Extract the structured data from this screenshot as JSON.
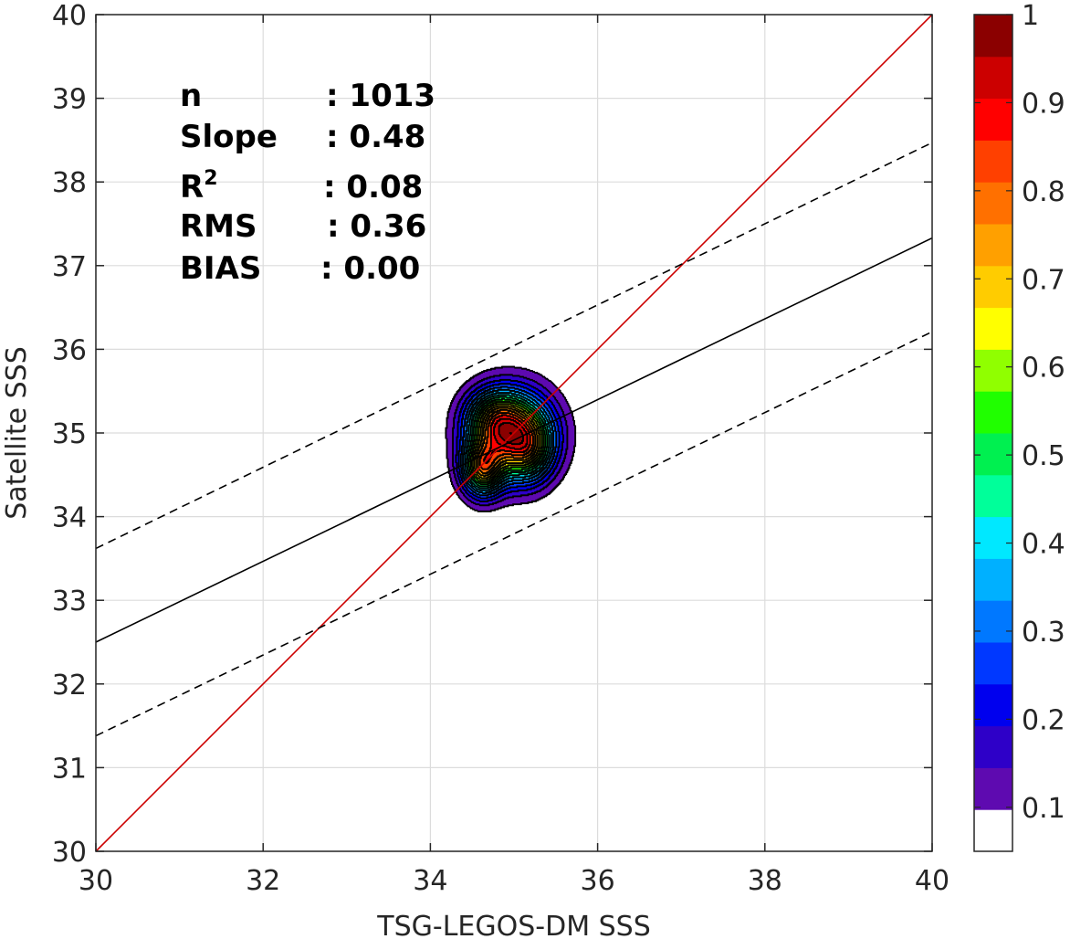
{
  "chart_data": {
    "type": "contour-scatter",
    "xlabel": "TSG-LEGOS-DM SSS",
    "ylabel": "Satellite SSS",
    "xlim": [
      30,
      40
    ],
    "ylim": [
      30,
      40
    ],
    "xticks": [
      "30",
      "32",
      "34",
      "36",
      "38",
      "40"
    ],
    "yticks": [
      "30",
      "31",
      "32",
      "33",
      "34",
      "35",
      "36",
      "37",
      "38",
      "39",
      "40"
    ],
    "grid": true,
    "stats": [
      {
        "label": "n",
        "value": ": 1013"
      },
      {
        "label": "Slope",
        "value": ": 0.48"
      },
      {
        "label": "R",
        "sup": "2",
        "value": ": 0.08"
      },
      {
        "label": "RMS",
        "value": ": 0.36"
      },
      {
        "label": "BIAS",
        "value": ": 0.00"
      }
    ],
    "lines": [
      {
        "name": "one-to-one",
        "color": "#cc0000",
        "style": "solid",
        "x": [
          30,
          40
        ],
        "y": [
          30,
          40
        ]
      },
      {
        "name": "regression",
        "color": "#000000",
        "style": "solid",
        "x": [
          30,
          40
        ],
        "y": [
          32.5,
          37.33
        ]
      },
      {
        "name": "upper-bound",
        "color": "#000000",
        "style": "dashed",
        "x": [
          30,
          40
        ],
        "y": [
          33.62,
          38.47
        ]
      },
      {
        "name": "lower-bound",
        "color": "#000000",
        "style": "dashed",
        "x": [
          30,
          40
        ],
        "y": [
          31.38,
          36.21
        ]
      }
    ],
    "density": {
      "peaks": [
        {
          "x": 34.98,
          "y": 34.98,
          "weight": 1.0,
          "sx": 0.32,
          "sy": 0.34
        },
        {
          "x": 34.62,
          "y": 34.58,
          "weight": 0.72,
          "sx": 0.16,
          "sy": 0.22
        },
        {
          "x": 34.75,
          "y": 35.2,
          "weight": 0.35,
          "sx": 0.22,
          "sy": 0.22
        },
        {
          "x": 35.2,
          "y": 34.8,
          "weight": 0.3,
          "sx": 0.18,
          "sy": 0.25
        }
      ]
    },
    "colorbar": {
      "ticks": [
        "0.1",
        "0.2",
        "0.3",
        "0.4",
        "0.5",
        "0.6",
        "0.7",
        "0.8",
        "0.9",
        "1"
      ],
      "levels": [
        "#ffffff",
        "#5e0ab0",
        "#2e00c8",
        "#0000ee",
        "#0038ff",
        "#0078ff",
        "#00b0ff",
        "#00e8ff",
        "#00ff9a",
        "#00f050",
        "#20ff00",
        "#90ff00",
        "#ffff00",
        "#ffcc00",
        "#ffa000",
        "#ff7000",
        "#ff4000",
        "#ff0000",
        "#cc0000",
        "#8b0000"
      ]
    }
  }
}
